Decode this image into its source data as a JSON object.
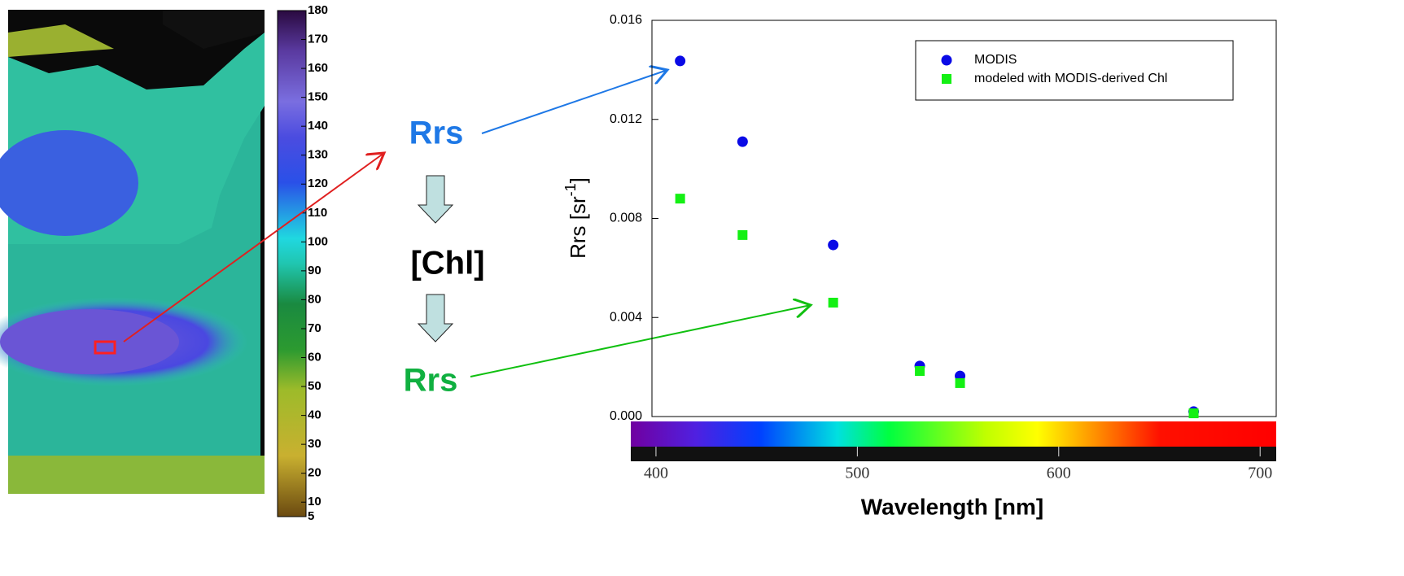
{
  "colorbar": {
    "lim": [
      5,
      180
    ],
    "ticks": [
      5,
      10,
      20,
      30,
      40,
      50,
      60,
      70,
      80,
      90,
      100,
      110,
      120,
      130,
      140,
      150,
      160,
      170,
      180
    ]
  },
  "diagram": {
    "labels": [
      "Rrs",
      "[Chl]",
      "Rrs"
    ]
  },
  "chart_data": {
    "type": "scatter",
    "x_label": "Wavelength [nm]",
    "y_label": {
      "text": "Rrs  [sr",
      "superscript": "-1",
      "suffix": "]"
    },
    "x": [
      412,
      443,
      488,
      531,
      551,
      667
    ],
    "series": [
      {
        "name": "MODIS",
        "color": "#0a0ae6",
        "marker": "circle",
        "values": [
          0.01436,
          0.0111,
          0.00693,
          0.00204,
          0.00164,
          0.0002
        ]
      },
      {
        "name": "modeled with MODIS-derived Chl",
        "color": "#14f014",
        "marker": "square",
        "values": [
          0.0088,
          0.00733,
          0.0046,
          0.00184,
          0.00135,
          0.00013
        ]
      }
    ],
    "xlim": [
      398,
      708
    ],
    "xticks": [
      400,
      500,
      600,
      700
    ],
    "ylim": [
      0,
      0.016
    ],
    "yticks": [
      {
        "value": 0,
        "label": "0.000"
      },
      {
        "value": 0.004,
        "label": "0.004"
      },
      {
        "value": 0.008,
        "label": "0.008"
      },
      {
        "value": 0.012,
        "label": "0.012"
      },
      {
        "value": 0.016,
        "label": "0.016"
      }
    ],
    "legend": "upper right"
  }
}
